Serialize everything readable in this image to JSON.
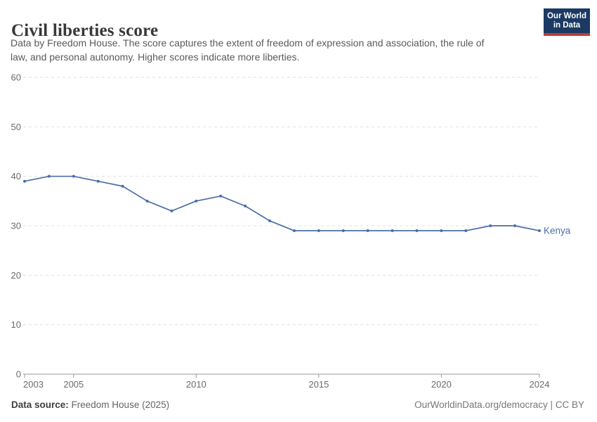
{
  "header": {
    "title": "Civil liberties score",
    "subtitle_line1": "Data by Freedom House. The score captures the extent of freedom of expression and association, the rule of",
    "subtitle_line2": "law, and personal autonomy. Higher scores indicate more liberties.",
    "logo": {
      "line1": "Our World",
      "line2": "in Data",
      "bg_color": "#1b3a63",
      "bar_color": "#c13b33"
    }
  },
  "chart_data": {
    "type": "line",
    "title": "Civil liberties score",
    "x": [
      2003,
      2004,
      2005,
      2006,
      2007,
      2008,
      2009,
      2010,
      2011,
      2012,
      2013,
      2014,
      2015,
      2016,
      2017,
      2018,
      2019,
      2020,
      2021,
      2022,
      2023,
      2024
    ],
    "series": [
      {
        "name": "Kenya",
        "color": "#4c6ea8",
        "values": [
          39,
          40,
          40,
          39,
          38,
          35,
          33,
          35,
          36,
          34,
          31,
          29,
          29,
          29,
          29,
          29,
          29,
          29,
          29,
          30,
          30,
          29
        ]
      }
    ],
    "xlim": [
      2003,
      2024
    ],
    "ylim": [
      0,
      60
    ],
    "x_ticks": [
      2003,
      2005,
      2010,
      2015,
      2020,
      2024
    ],
    "y_ticks": [
      0,
      10,
      20,
      30,
      40,
      50,
      60
    ],
    "grid": "horizontal-dashed",
    "legend_position": "end-of-line",
    "end_label": "Kenya",
    "grid_color": "#e0e0e0",
    "axis_color": "#9a9a9a",
    "tick_label_color": "#6b6b6b"
  },
  "footer": {
    "source_label": "Data source:",
    "source_value": " Freedom House (2025)",
    "license": "OurWorldinData.org/democracy | CC BY"
  }
}
